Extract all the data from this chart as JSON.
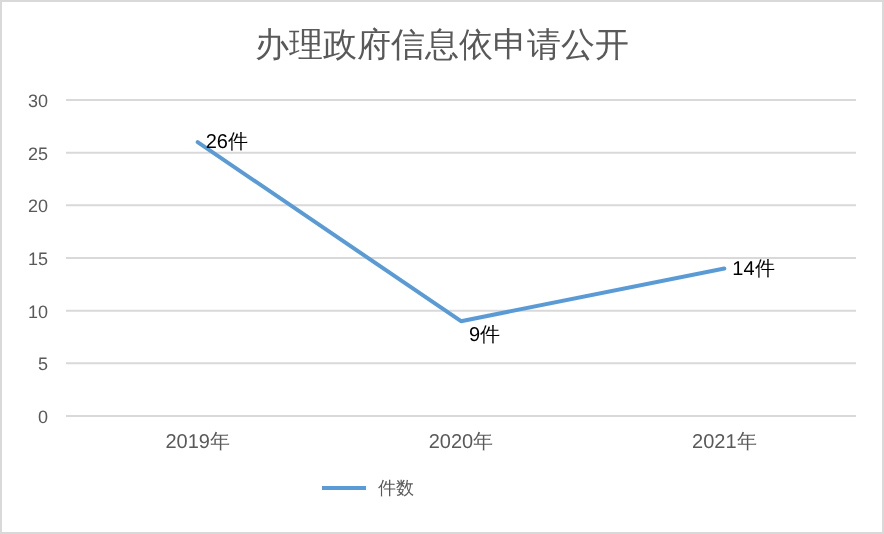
{
  "chart_data": {
    "type": "line",
    "title": "办理政府信息依申请公开",
    "categories": [
      "2019年",
      "2020年",
      "2021年"
    ],
    "series": [
      {
        "name": "件数",
        "color": "#5b9bd5",
        "values": [
          26,
          9,
          14
        ],
        "value_labels": [
          "26件",
          "9件",
          "14件"
        ]
      }
    ],
    "ylim": [
      0,
      30
    ],
    "yticks": [
      0,
      5,
      10,
      15,
      20,
      25,
      30
    ],
    "grid": "y",
    "legend": "bottom",
    "marker": "none",
    "line_style": "solid"
  }
}
